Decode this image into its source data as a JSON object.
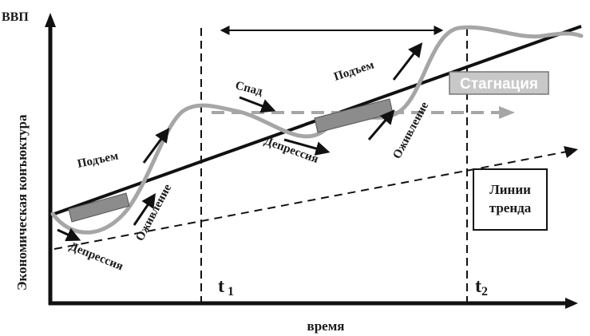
{
  "axes": {
    "y_label": "ВВП",
    "y_title": "Экономическая конъюктура",
    "x_title": "время"
  },
  "time_marks": {
    "t1": "t",
    "t1_sub": "1",
    "t2": "t",
    "t2_sub": "2"
  },
  "phases": {
    "depression_1": "Депрессия",
    "revival_1": "Оживление",
    "rise_1": "Подъем",
    "decline": "Спад",
    "depression_2": "Депрессия",
    "rise_2": "Подъем",
    "revival_2": "Оживление"
  },
  "boxes": {
    "stagnation": "Стагнация",
    "trend_lines_line1": "Линии",
    "trend_lines_line2": "тренда"
  },
  "colors": {
    "cycle_curve": "#a6a6a6",
    "trend_line": "#111111",
    "band_fill": "#8c8c8c",
    "stagnation_fill": "#c8c8c8",
    "stagnation_text": "#ffffff"
  }
}
